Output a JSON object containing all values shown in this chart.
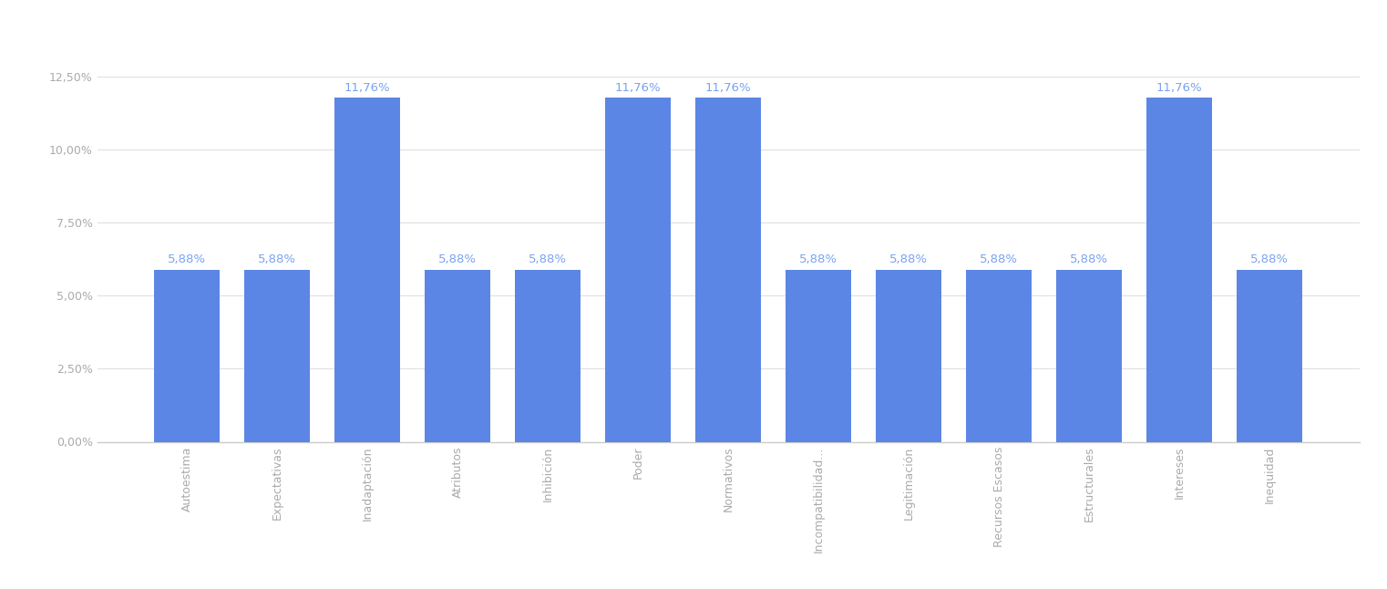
{
  "categories": [
    "Autoestima",
    "Expectativas",
    "Inadaptación",
    "Atributos",
    "Inhibición",
    "Poder",
    "Normativos",
    "Incompatibilidad...",
    "Legitimación",
    "Recursos Escasos",
    "Estructurales",
    "Intereses",
    "Inequidad"
  ],
  "values": [
    5.88,
    5.88,
    11.76,
    5.88,
    5.88,
    11.76,
    11.76,
    5.88,
    5.88,
    5.88,
    5.88,
    11.76,
    5.88
  ],
  "bar_color": "#5b86e5",
  "label_color": "#7aa3f0",
  "grid_color": "#e0e0e0",
  "background_color": "#ffffff",
  "ylim": [
    0,
    13.5
  ],
  "yticks": [
    0.0,
    2.5,
    5.0,
    7.5,
    10.0,
    12.5
  ],
  "ytick_labels": [
    "0,00%",
    "2,50%",
    "5,00%",
    "7,50%",
    "10,00%",
    "12,50%"
  ],
  "bar_width": 0.72,
  "label_fontsize": 9.5,
  "tick_fontsize": 9.0,
  "ytick_color": "#aaaaaa",
  "xtick_color": "#aaaaaa",
  "spine_color": "#cccccc"
}
